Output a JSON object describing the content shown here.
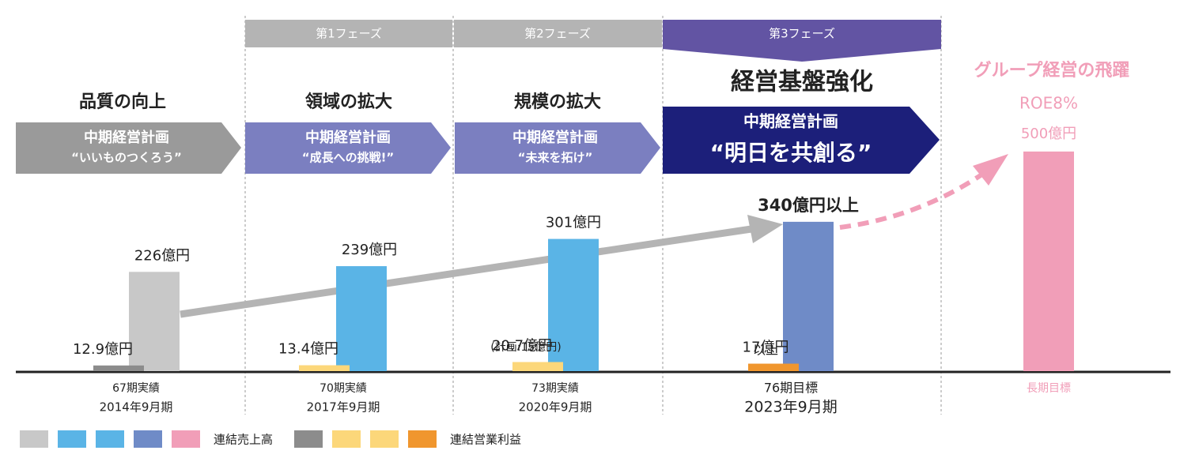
{
  "phases": [
    "第1フェーズ",
    "第2フェーズ",
    "第3フェーズ"
  ],
  "themes": [
    "品質の向上",
    "領域の拡大",
    "規模の拡大",
    "経営基盤強化",
    "グループ経営の飛躍"
  ],
  "plans": [
    {
      "name": "中期経営計画",
      "slogan": "“いいものつくろう”"
    },
    {
      "name": "中期経営計画",
      "slogan": "“成長への挑戦!”"
    },
    {
      "name": "中期経営計画",
      "slogan": "“未来を拓け”"
    },
    {
      "name": "中期経営計画",
      "slogan": "“明日を共創る”"
    }
  ],
  "chart_data": {
    "type": "bar",
    "categories": [
      "67期実績",
      "70期実績",
      "73期実績",
      "76期目標",
      "長期目標"
    ],
    "periods": [
      "2014年9月期",
      "2017年9月期",
      "2020年9月期",
      "2023年9月期",
      null
    ],
    "ylim": [
      0,
      800
    ],
    "series": [
      {
        "name": "連結売上高",
        "colors": [
          "#c8c8c8",
          "#5ab4e6",
          "#5ab4e6",
          "#6f8bc7",
          "#f19eb8"
        ],
        "values": [
          226,
          239,
          301,
          340,
          500
        ],
        "value_labels": [
          "226億円",
          "239億円",
          "301億円",
          "340億円以上",
          "500億円"
        ]
      },
      {
        "name": "連結営業利益",
        "colors": [
          "#8c8c8c",
          "#fcd77a",
          "#fcd77a",
          "#f0962e",
          null
        ],
        "values": [
          12.9,
          13.4,
          20.7,
          17,
          null
        ],
        "value_labels": [
          "12.9億円",
          "13.4億円",
          "20.7億円",
          "17億円",
          null
        ]
      }
    ],
    "annotations": [
      "(計画:15億円)",
      "以上",
      "ROE8%"
    ]
  }
}
